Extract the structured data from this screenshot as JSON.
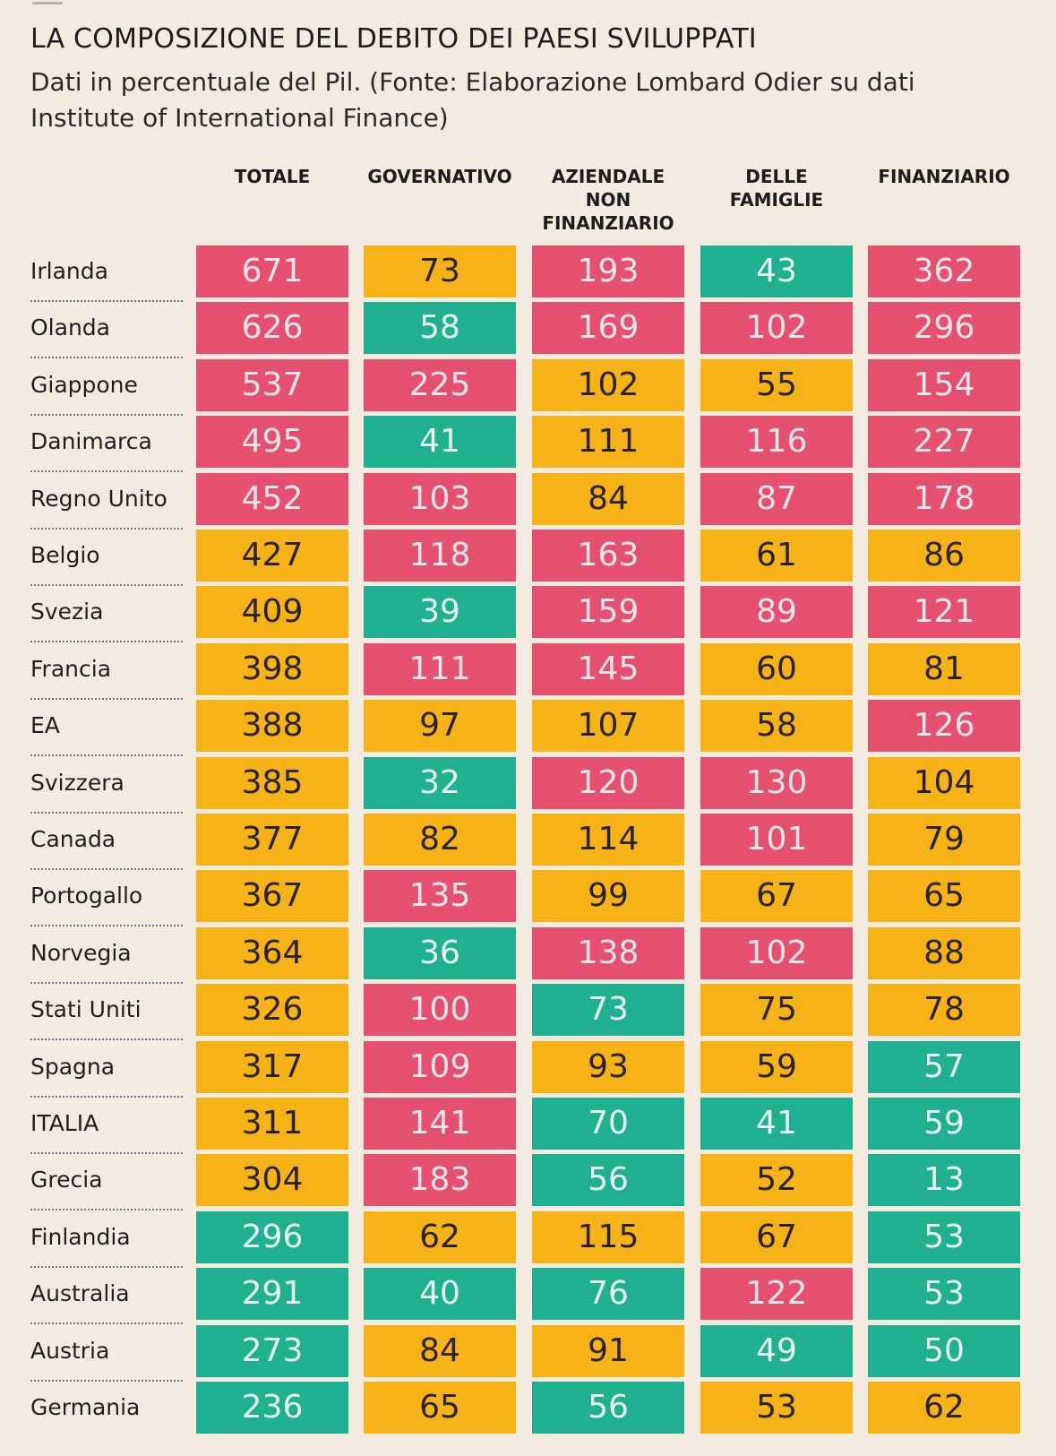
{
  "title": "LA COMPOSIZIONE DEL DEBITO DEI PAESI SVILUPPATI",
  "subtitle": "Dati in percentuale del Pil. (Fonte: Elaborazione Lombard Odier su dati Institute of International Finance)",
  "colors": {
    "high": "#e5506e",
    "medium": "#f6b317",
    "low": "#1fb08f",
    "background": "#f3ebe0"
  },
  "chart_data": {
    "type": "table",
    "title": "LA COMPOSIZIONE DEL DEBITO DEI PAESI SVILUPPATI",
    "subtitle": "Dati in percentuale del Pil. (Fonte: Elaborazione Lombard Odier su dati Institute of International Finance)",
    "columns": [
      "TOTALE",
      "GOVERNATIVO",
      "AZIENDALE\nNON\nFINANZIARIO",
      "DELLE\nFAMIGLIE",
      "FINANZIARIO"
    ],
    "rows": [
      {
        "country": "Irlanda",
        "values": [
          671,
          73,
          193,
          43,
          362
        ],
        "colors": [
          "red",
          "orange",
          "red",
          "green",
          "red"
        ]
      },
      {
        "country": "Olanda",
        "values": [
          626,
          58,
          169,
          102,
          296
        ],
        "colors": [
          "red",
          "green",
          "red",
          "red",
          "red"
        ]
      },
      {
        "country": "Giappone",
        "values": [
          537,
          225,
          102,
          55,
          154
        ],
        "colors": [
          "red",
          "red",
          "orange",
          "orange",
          "red"
        ]
      },
      {
        "country": "Danimarca",
        "values": [
          495,
          41,
          111,
          116,
          227
        ],
        "colors": [
          "red",
          "green",
          "orange",
          "red",
          "red"
        ]
      },
      {
        "country": "Regno Unito",
        "values": [
          452,
          103,
          84,
          87,
          178
        ],
        "colors": [
          "red",
          "red",
          "orange",
          "red",
          "red"
        ]
      },
      {
        "country": "Belgio",
        "values": [
          427,
          118,
          163,
          61,
          86
        ],
        "colors": [
          "orange",
          "red",
          "red",
          "orange",
          "orange"
        ]
      },
      {
        "country": "Svezia",
        "values": [
          409,
          39,
          159,
          89,
          121
        ],
        "colors": [
          "orange",
          "green",
          "red",
          "red",
          "red"
        ]
      },
      {
        "country": "Francia",
        "values": [
          398,
          111,
          145,
          60,
          81
        ],
        "colors": [
          "orange",
          "red",
          "red",
          "orange",
          "orange"
        ]
      },
      {
        "country": "EA",
        "values": [
          388,
          97,
          107,
          58,
          126
        ],
        "colors": [
          "orange",
          "orange",
          "orange",
          "orange",
          "red"
        ]
      },
      {
        "country": "Svizzera",
        "values": [
          385,
          32,
          120,
          130,
          104
        ],
        "colors": [
          "orange",
          "green",
          "red",
          "red",
          "orange"
        ]
      },
      {
        "country": "Canada",
        "values": [
          377,
          82,
          114,
          101,
          79
        ],
        "colors": [
          "orange",
          "orange",
          "orange",
          "red",
          "orange"
        ]
      },
      {
        "country": "Portogallo",
        "values": [
          367,
          135,
          99,
          67,
          65
        ],
        "colors": [
          "orange",
          "red",
          "orange",
          "orange",
          "orange"
        ]
      },
      {
        "country": "Norvegia",
        "values": [
          364,
          36,
          138,
          102,
          88
        ],
        "colors": [
          "orange",
          "green",
          "red",
          "red",
          "orange"
        ]
      },
      {
        "country": "Stati Uniti",
        "values": [
          326,
          100,
          73,
          75,
          78
        ],
        "colors": [
          "orange",
          "red",
          "green",
          "orange",
          "orange"
        ]
      },
      {
        "country": "Spagna",
        "values": [
          317,
          109,
          93,
          59,
          57
        ],
        "colors": [
          "orange",
          "red",
          "orange",
          "orange",
          "green"
        ]
      },
      {
        "country": "ITALIA",
        "values": [
          311,
          141,
          70,
          41,
          59
        ],
        "colors": [
          "orange",
          "red",
          "green",
          "green",
          "green"
        ]
      },
      {
        "country": "Grecia",
        "values": [
          304,
          183,
          56,
          52,
          13
        ],
        "colors": [
          "orange",
          "red",
          "green",
          "orange",
          "green"
        ]
      },
      {
        "country": "Finlandia",
        "values": [
          296,
          62,
          115,
          67,
          53
        ],
        "colors": [
          "green",
          "orange",
          "orange",
          "orange",
          "green"
        ]
      },
      {
        "country": "Australia",
        "values": [
          291,
          40,
          76,
          122,
          53
        ],
        "colors": [
          "green",
          "green",
          "green",
          "red",
          "green"
        ]
      },
      {
        "country": "Austria",
        "values": [
          273,
          84,
          91,
          49,
          50
        ],
        "colors": [
          "green",
          "orange",
          "orange",
          "green",
          "green"
        ]
      },
      {
        "country": "Germania",
        "values": [
          236,
          65,
          56,
          53,
          62
        ],
        "colors": [
          "green",
          "orange",
          "green",
          "orange",
          "orange"
        ]
      }
    ]
  }
}
